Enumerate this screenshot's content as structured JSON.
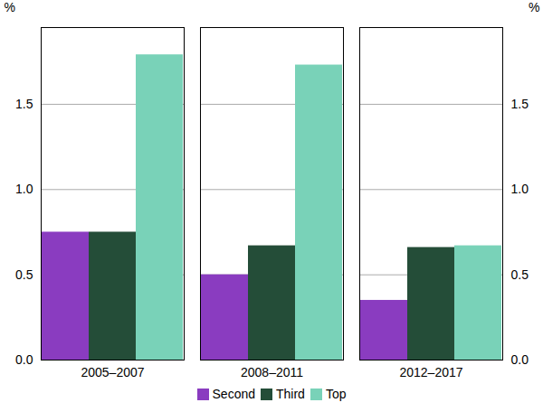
{
  "chart_data": {
    "type": "bar",
    "categories": [
      "2005–2007",
      "2008–2011",
      "2012–2017"
    ],
    "series": [
      {
        "name": "Second",
        "color": "#8a3cc0",
        "values": [
          0.75,
          0.5,
          0.35
        ]
      },
      {
        "name": "Third",
        "color": "#244d38",
        "values": [
          0.75,
          0.67,
          0.66
        ]
      },
      {
        "name": "Top",
        "color": "#79d2b8",
        "values": [
          1.79,
          1.73,
          0.67
        ]
      }
    ],
    "ylabel": "%",
    "ylim": [
      0,
      1.95
    ],
    "yticks": [
      {
        "value": 0,
        "label": "0.0"
      },
      0.5,
      {
        "value": 1,
        "label": "1.0"
      },
      1.5
    ],
    "grid": true,
    "legend": "bottom"
  }
}
